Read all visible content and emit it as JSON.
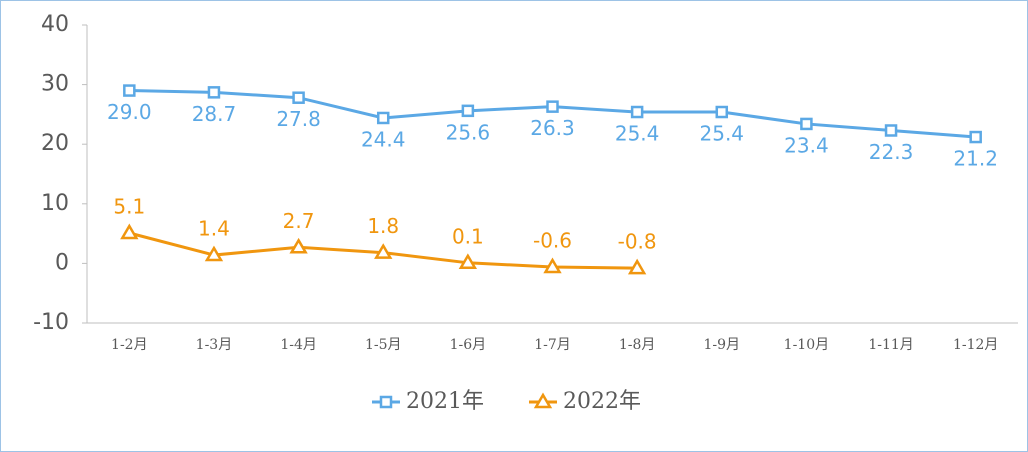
{
  "chart_data": {
    "type": "line",
    "categories": [
      "1-2月",
      "1-3月",
      "1-4月",
      "1-5月",
      "1-6月",
      "1-7月",
      "1-8月",
      "1-9月",
      "1-10月",
      "1-11月",
      "1-12月"
    ],
    "series": [
      {
        "name": "2021年",
        "color": "#5ba8e5",
        "marker": "square",
        "values": [
          29.0,
          28.7,
          27.8,
          24.4,
          25.6,
          26.3,
          25.4,
          25.4,
          23.4,
          22.3,
          21.2
        ],
        "value_labels": [
          "29.0",
          "28.7",
          "27.8",
          "24.4",
          "25.6",
          "26.3",
          "25.4",
          "25.4",
          "23.4",
          "22.3",
          "21.2"
        ],
        "label_position": "below"
      },
      {
        "name": "2022年",
        "color": "#f0960f",
        "marker": "triangle",
        "values": [
          5.1,
          1.4,
          2.7,
          1.8,
          0.1,
          -0.6,
          -0.8,
          null,
          null,
          null,
          null
        ],
        "label_position": "above"
      }
    ],
    "ylim": [
      -10,
      40
    ],
    "yticks": [
      -10,
      0,
      10,
      20,
      30,
      40
    ],
    "grid": false,
    "legend": "bottom"
  }
}
